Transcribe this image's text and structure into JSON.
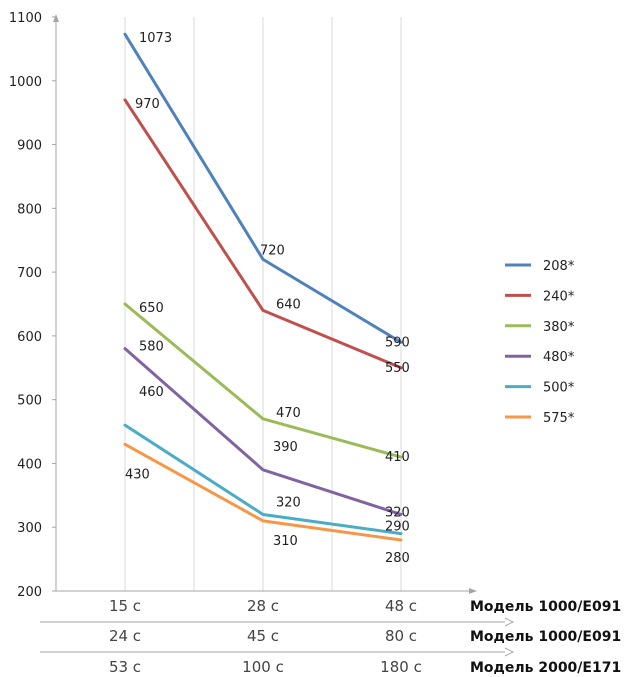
{
  "chart_data": {
    "type": "line",
    "categories": [
      "15 с",
      "28 с",
      "48 с"
    ],
    "x_rows": [
      {
        "categories": [
          "15 с",
          "28 с",
          "48 с"
        ],
        "model": "Модель 1000/E091"
      },
      {
        "categories": [
          "24 с",
          "45 с",
          "80 с"
        ],
        "model": "Модель 1000/E091"
      },
      {
        "categories": [
          "53 с",
          "100 с",
          "180 с"
        ],
        "model": "Модель 2000/E171"
      }
    ],
    "ylim": [
      200,
      1100
    ],
    "yticks": [
      200,
      300,
      400,
      500,
      600,
      700,
      800,
      900,
      1000,
      1100
    ],
    "grid": "vertical",
    "legend_position": "right",
    "series": [
      {
        "name": "208*",
        "color": "#4f81bd",
        "values": [
          1073,
          720,
          590
        ]
      },
      {
        "name": "240*",
        "color": "#c0504d",
        "values": [
          970,
          640,
          550
        ]
      },
      {
        "name": "380*",
        "color": "#9bbb59",
        "values": [
          650,
          470,
          410
        ]
      },
      {
        "name": "480*",
        "color": "#8064a2",
        "values": [
          580,
          390,
          320
        ]
      },
      {
        "name": "500*",
        "color": "#4bacc6",
        "values": [
          460,
          320,
          290
        ]
      },
      {
        "name": "575*",
        "color": "#f79646",
        "values": [
          430,
          310,
          280
        ]
      }
    ]
  }
}
